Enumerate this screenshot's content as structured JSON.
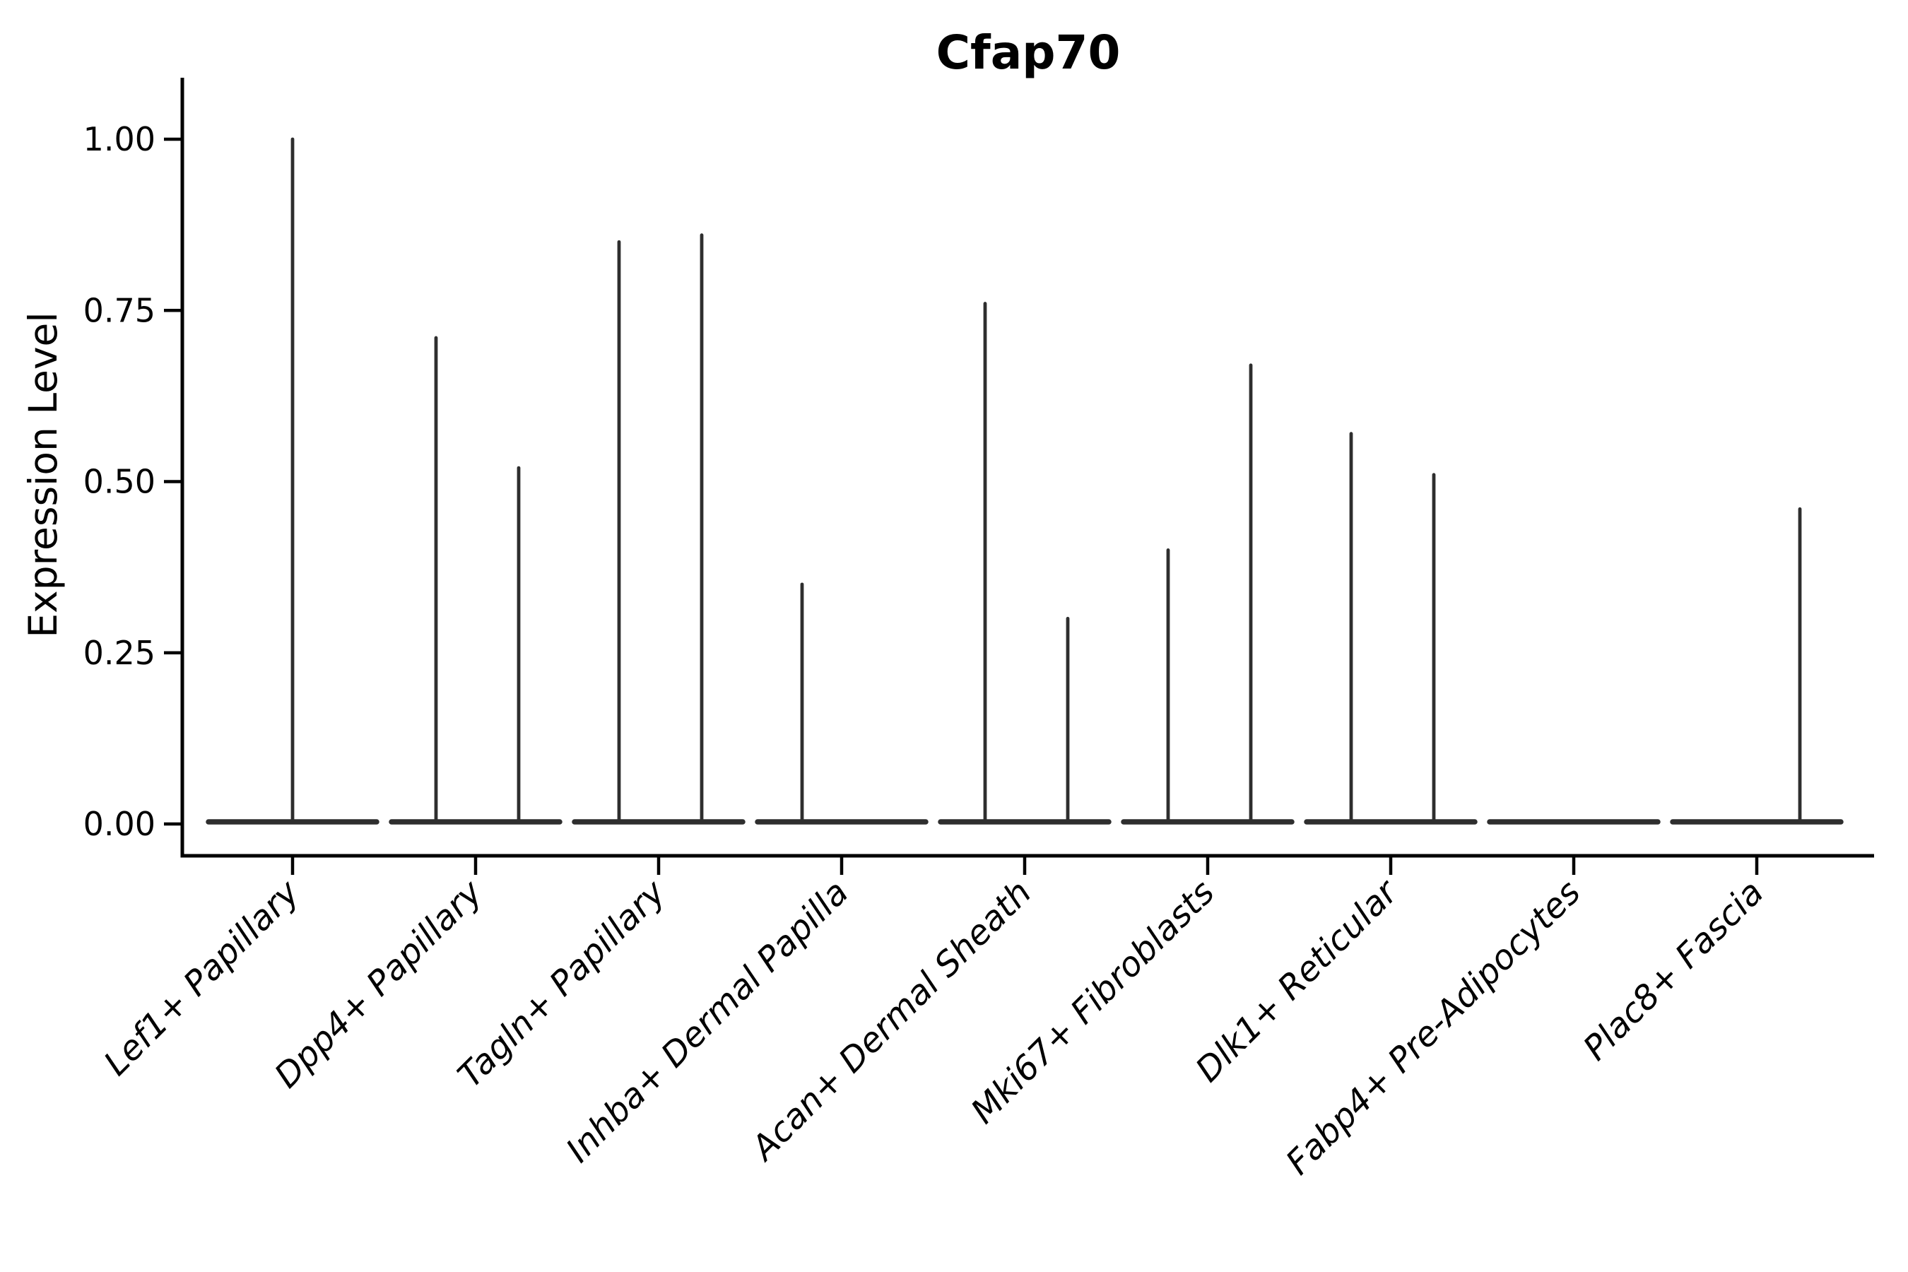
{
  "chart_data": {
    "type": "violin",
    "title": "Cfap70",
    "xlabel": "",
    "ylabel": "Expression Level",
    "ylim": [
      0.0,
      1.0
    ],
    "yticks": [
      0.0,
      0.25,
      0.5,
      0.75,
      1.0
    ],
    "ytick_labels": [
      "0.00",
      "0.25",
      "0.50",
      "0.75",
      "1.00"
    ],
    "x_tick_rotation": 45,
    "grid": false,
    "legend": "none",
    "background": "#ffffff",
    "axis_color": "#000000",
    "violin_color": "#2e2e2e",
    "baseline_value": 0.0,
    "categories": [
      "Lef1+ Papillary",
      "Dpp4+ Papillary",
      "Tagln+ Papillary",
      "Inhba+ Dermal Papilla",
      "Acan+ Dermal Sheath",
      "Mki67+ Fibroblasts",
      "Dlk1+ Reticular",
      "Fabp4+ Pre-Adipocytes",
      "Plac8+ Fascia"
    ],
    "violins": [
      {
        "category": "Lef1+ Papillary",
        "spikes": [
          {
            "pos": "center",
            "max": 1.0
          }
        ]
      },
      {
        "category": "Dpp4+ Papillary",
        "spikes": [
          {
            "pos": "left",
            "max": 0.71
          },
          {
            "pos": "right",
            "max": 0.52
          }
        ]
      },
      {
        "category": "Tagln+ Papillary",
        "spikes": [
          {
            "pos": "left",
            "max": 0.85
          },
          {
            "pos": "right",
            "max": 0.86
          }
        ]
      },
      {
        "category": "Inhba+ Dermal Papilla",
        "spikes": [
          {
            "pos": "left",
            "max": 0.35
          }
        ]
      },
      {
        "category": "Acan+ Dermal Sheath",
        "spikes": [
          {
            "pos": "left",
            "max": 0.76
          },
          {
            "pos": "right",
            "max": 0.3
          }
        ]
      },
      {
        "category": "Mki67+ Fibroblasts",
        "spikes": [
          {
            "pos": "left",
            "max": 0.4
          },
          {
            "pos": "right",
            "max": 0.67
          }
        ]
      },
      {
        "category": "Dlk1+ Reticular",
        "spikes": [
          {
            "pos": "left",
            "max": 0.57
          },
          {
            "pos": "right",
            "max": 0.51
          }
        ]
      },
      {
        "category": "Fabp4+ Pre-Adipocytes",
        "spikes": []
      },
      {
        "category": "Plac8+ Fascia",
        "spikes": [
          {
            "pos": "right",
            "max": 0.46
          }
        ]
      }
    ]
  }
}
